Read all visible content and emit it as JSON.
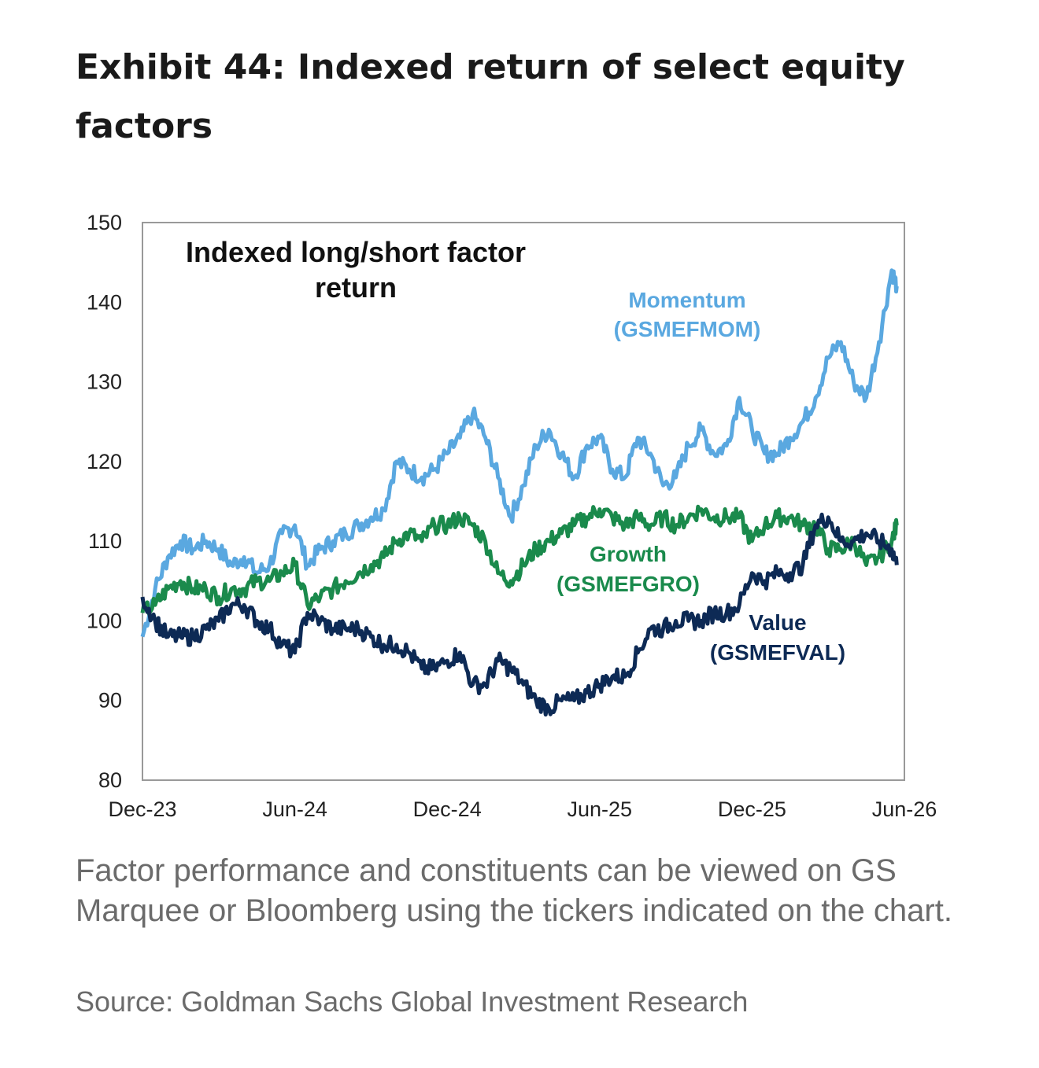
{
  "exhibit": {
    "title": "Exhibit 44: Indexed return of select equity factors",
    "caption": "Factor performance and constituents can be viewed on GS Marquee or Bloomberg using the tickers indicated on the chart.",
    "source": "Source: Goldman Sachs Global Investment Research"
  },
  "chart_data": {
    "type": "line",
    "title": "Indexed long/short factor",
    "title_line2": "return",
    "xlabel": "",
    "ylabel": "",
    "x_ticks": [
      "Dec-23",
      "Jun-24",
      "Dec-24",
      "Jun-25",
      "Dec-25",
      "Jun-26"
    ],
    "x_tick_values": [
      0,
      6,
      12,
      18,
      24,
      30
    ],
    "xlim": [
      0,
      30
    ],
    "ylim": [
      80,
      150
    ],
    "y_ticks": [
      80,
      90,
      100,
      110,
      120,
      130,
      140,
      150
    ],
    "x_unit": "months since Dec-23",
    "series": [
      {
        "name": "Momentum",
        "ticker": "(GSMEFMOM)",
        "color": "#5aa8e0",
        "points": [
          [
            0,
            98
          ],
          [
            0.5,
            104
          ],
          [
            1,
            108
          ],
          [
            1.5,
            110
          ],
          [
            2,
            109
          ],
          [
            2.5,
            110
          ],
          [
            3,
            109
          ],
          [
            3.5,
            107
          ],
          [
            4,
            108
          ],
          [
            4.5,
            106
          ],
          [
            5,
            107
          ],
          [
            5.5,
            111
          ],
          [
            6,
            112
          ],
          [
            6.5,
            107
          ],
          [
            7,
            109
          ],
          [
            7.5,
            110
          ],
          [
            8,
            111
          ],
          [
            8.5,
            112
          ],
          [
            9,
            113
          ],
          [
            9.5,
            114
          ],
          [
            10,
            120
          ],
          [
            10.5,
            119
          ],
          [
            11,
            118
          ],
          [
            11.5,
            119
          ],
          [
            12,
            121
          ],
          [
            12.5,
            123
          ],
          [
            13,
            126
          ],
          [
            13.5,
            123
          ],
          [
            14,
            118
          ],
          [
            14.5,
            113
          ],
          [
            15,
            117
          ],
          [
            15.5,
            122
          ],
          [
            16,
            124
          ],
          [
            16.5,
            121
          ],
          [
            17,
            118
          ],
          [
            17.5,
            122
          ],
          [
            18,
            123
          ],
          [
            18.5,
            119
          ],
          [
            19,
            118
          ],
          [
            19.5,
            123
          ],
          [
            20,
            121
          ],
          [
            20.5,
            117
          ],
          [
            21,
            118
          ],
          [
            21.5,
            122
          ],
          [
            22,
            124
          ],
          [
            22.5,
            121
          ],
          [
            23,
            122
          ],
          [
            23.5,
            128
          ],
          [
            24,
            124
          ],
          [
            24.5,
            121
          ],
          [
            25,
            121
          ],
          [
            25.5,
            123
          ],
          [
            26,
            125
          ],
          [
            26.5,
            128
          ],
          [
            27,
            133
          ],
          [
            27.5,
            135
          ],
          [
            28,
            130
          ],
          [
            28.5,
            128
          ],
          [
            29,
            135
          ],
          [
            29.5,
            144
          ],
          [
            29.7,
            142
          ]
        ]
      },
      {
        "name": "Growth",
        "ticker": "(GSMEFGRO)",
        "color": "#1a8a4c",
        "points": [
          [
            0,
            101
          ],
          [
            0.5,
            102
          ],
          [
            1,
            104
          ],
          [
            1.5,
            105
          ],
          [
            2,
            104
          ],
          [
            2.5,
            104
          ],
          [
            3,
            103
          ],
          [
            3.5,
            104
          ],
          [
            4,
            104
          ],
          [
            4.5,
            105
          ],
          [
            5,
            105
          ],
          [
            5.5,
            106
          ],
          [
            6,
            107
          ],
          [
            6.5,
            102
          ],
          [
            7,
            103
          ],
          [
            7.5,
            104
          ],
          [
            8,
            105
          ],
          [
            8.5,
            106
          ],
          [
            9,
            107
          ],
          [
            9.5,
            108
          ],
          [
            10,
            110
          ],
          [
            10.5,
            111
          ],
          [
            11,
            110
          ],
          [
            11.5,
            112
          ],
          [
            12,
            112
          ],
          [
            12.5,
            113
          ],
          [
            13,
            112
          ],
          [
            13.5,
            110
          ],
          [
            14,
            106
          ],
          [
            14.5,
            105
          ],
          [
            15,
            107
          ],
          [
            15.5,
            109
          ],
          [
            16,
            110
          ],
          [
            16.5,
            111
          ],
          [
            17,
            112
          ],
          [
            17.5,
            113
          ],
          [
            18,
            114
          ],
          [
            18.5,
            113
          ],
          [
            19,
            112
          ],
          [
            19.5,
            113
          ],
          [
            20,
            112
          ],
          [
            20.5,
            113
          ],
          [
            21,
            112
          ],
          [
            21.5,
            113
          ],
          [
            22,
            114
          ],
          [
            22.5,
            113
          ],
          [
            23,
            113
          ],
          [
            23.5,
            113
          ],
          [
            24,
            110
          ],
          [
            24.5,
            112
          ],
          [
            25,
            113
          ],
          [
            25.5,
            113
          ],
          [
            26,
            112
          ],
          [
            26.5,
            112
          ],
          [
            27,
            109
          ],
          [
            27.5,
            109
          ],
          [
            28,
            110
          ],
          [
            28.5,
            107
          ],
          [
            29,
            108
          ],
          [
            29.5,
            110
          ],
          [
            29.7,
            112
          ]
        ]
      },
      {
        "name": "Value",
        "ticker": "(GSMEFVAL)",
        "color": "#0d2a55",
        "points": [
          [
            0,
            103
          ],
          [
            0.5,
            100
          ],
          [
            1,
            98
          ],
          [
            1.5,
            98
          ],
          [
            2,
            98
          ],
          [
            2.5,
            99
          ],
          [
            3,
            100
          ],
          [
            3.5,
            102
          ],
          [
            4,
            102
          ],
          [
            4.5,
            100
          ],
          [
            5,
            99
          ],
          [
            5.5,
            97
          ],
          [
            6,
            96
          ],
          [
            6.5,
            101
          ],
          [
            7,
            100
          ],
          [
            7.5,
            99
          ],
          [
            8,
            99
          ],
          [
            8.5,
            99
          ],
          [
            9,
            98
          ],
          [
            9.5,
            97
          ],
          [
            10,
            97
          ],
          [
            10.5,
            96
          ],
          [
            11,
            94
          ],
          [
            11.5,
            94
          ],
          [
            12,
            95
          ],
          [
            12.5,
            96
          ],
          [
            13,
            92
          ],
          [
            13.5,
            92
          ],
          [
            14,
            95
          ],
          [
            14.5,
            94
          ],
          [
            15,
            92
          ],
          [
            15.5,
            90
          ],
          [
            16,
            89
          ],
          [
            16.5,
            90
          ],
          [
            17,
            90
          ],
          [
            17.5,
            91
          ],
          [
            18,
            92
          ],
          [
            18.5,
            93
          ],
          [
            19,
            93
          ],
          [
            19.5,
            96
          ],
          [
            20,
            99
          ],
          [
            20.5,
            99
          ],
          [
            21,
            100
          ],
          [
            21.5,
            100
          ],
          [
            22,
            100
          ],
          [
            22.5,
            101
          ],
          [
            23,
            101
          ],
          [
            23.5,
            102
          ],
          [
            24,
            106
          ],
          [
            24.5,
            105
          ],
          [
            25,
            106
          ],
          [
            25.5,
            106
          ],
          [
            26,
            107
          ],
          [
            26.5,
            112
          ],
          [
            27,
            113
          ],
          [
            27.5,
            110
          ],
          [
            28,
            110
          ],
          [
            28.5,
            111
          ],
          [
            29,
            110
          ],
          [
            29.5,
            109
          ],
          [
            29.7,
            107
          ]
        ]
      }
    ]
  }
}
